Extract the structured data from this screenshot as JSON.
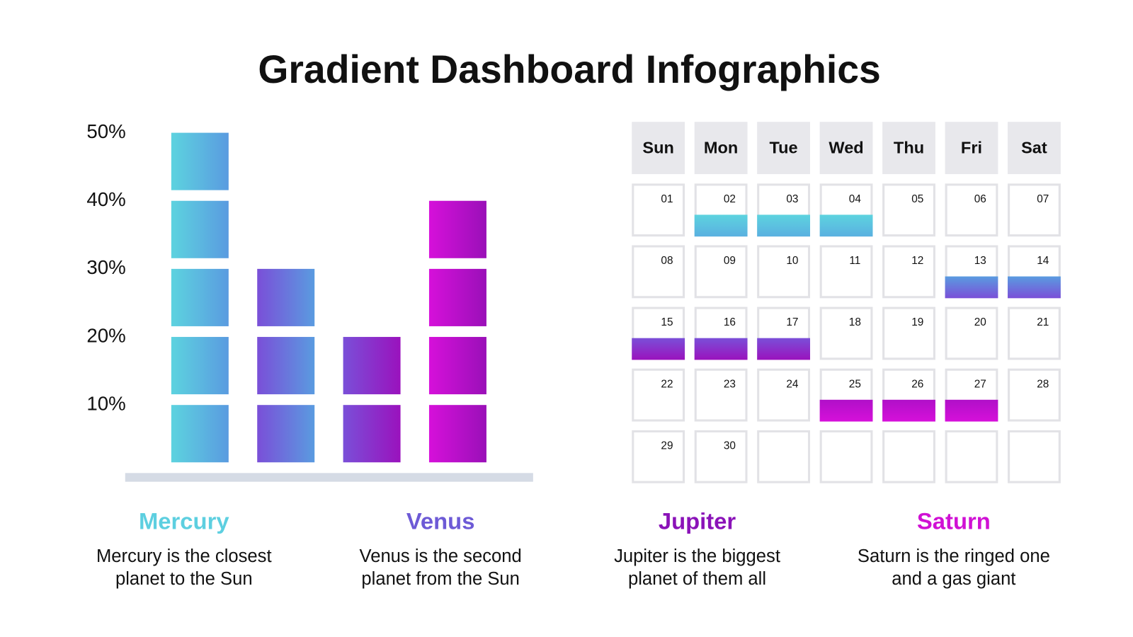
{
  "title": "Gradient Dashboard Infographics",
  "chart_data": {
    "type": "blocks",
    "categories": [
      null,
      null,
      null,
      null
    ],
    "values": [
      50,
      30,
      20,
      40
    ],
    "colors": [
      [
        "#5dd3df",
        "#5a9be0"
      ],
      [
        "#7a4fd8",
        "#5a9be0"
      ],
      [
        "#7a4fd8",
        "#9a12bd"
      ],
      [
        "#d610da",
        "#9a10b8"
      ]
    ],
    "block_size": 10,
    "ylim": [
      0,
      50
    ],
    "yticks": [
      {
        "value": 10,
        "label": "10%"
      },
      {
        "value": 20,
        "label": "20%"
      },
      {
        "value": 30,
        "label": "30%"
      },
      {
        "value": 40,
        "label": "40%"
      },
      {
        "value": 50,
        "label": "50%"
      }
    ]
  },
  "calendar": {
    "weekdays": [
      "Sun",
      "Mon",
      "Tue",
      "Wed",
      "Thu",
      "Fri",
      "Sat"
    ],
    "days": [
      {
        "label": "01"
      },
      {
        "label": "02",
        "highlight": [
          "#5dd3df",
          "#5ab0e0"
        ]
      },
      {
        "label": "03",
        "highlight": [
          "#5dd3df",
          "#5ab0e0"
        ]
      },
      {
        "label": "04",
        "highlight": [
          "#5dd3df",
          "#5ab0e0"
        ]
      },
      {
        "label": "05"
      },
      {
        "label": "06"
      },
      {
        "label": "07"
      },
      {
        "label": "08"
      },
      {
        "label": "09"
      },
      {
        "label": "10"
      },
      {
        "label": "11"
      },
      {
        "label": "12"
      },
      {
        "label": "13",
        "highlight": [
          "#5a9be0",
          "#7a4fd8"
        ]
      },
      {
        "label": "14",
        "highlight": [
          "#5a9be0",
          "#7a4fd8"
        ]
      },
      {
        "label": "15",
        "highlight": [
          "#7a4fd8",
          "#9a12bd"
        ]
      },
      {
        "label": "16",
        "highlight": [
          "#7a4fd8",
          "#9a12bd"
        ]
      },
      {
        "label": "17",
        "highlight": [
          "#7a4fd8",
          "#9a12bd"
        ]
      },
      {
        "label": "18"
      },
      {
        "label": "19"
      },
      {
        "label": "20"
      },
      {
        "label": "21"
      },
      {
        "label": "22"
      },
      {
        "label": "23"
      },
      {
        "label": "24"
      },
      {
        "label": "25",
        "highlight": [
          "#b010c8",
          "#d610da"
        ]
      },
      {
        "label": "26",
        "highlight": [
          "#b010c8",
          "#d610da"
        ]
      },
      {
        "label": "27",
        "highlight": [
          "#b010c8",
          "#d610da"
        ]
      },
      {
        "label": "28"
      },
      {
        "label": "29"
      },
      {
        "label": "30"
      }
    ]
  },
  "planets": [
    {
      "name": "Mercury",
      "color": "#5dcfe0",
      "lines": [
        "Mercury is the closest",
        "planet to the Sun"
      ]
    },
    {
      "name": "Venus",
      "color": "#6d5ad6",
      "lines": [
        "Venus is the second",
        "planet from the Sun"
      ]
    },
    {
      "name": "Jupiter",
      "color": "#8a12b8",
      "lines": [
        "Jupiter is the biggest",
        "planet of them all"
      ]
    },
    {
      "name": "Saturn",
      "color": "#d010d4",
      "lines": [
        "Saturn is the ringed one",
        "and a gas giant"
      ]
    }
  ]
}
